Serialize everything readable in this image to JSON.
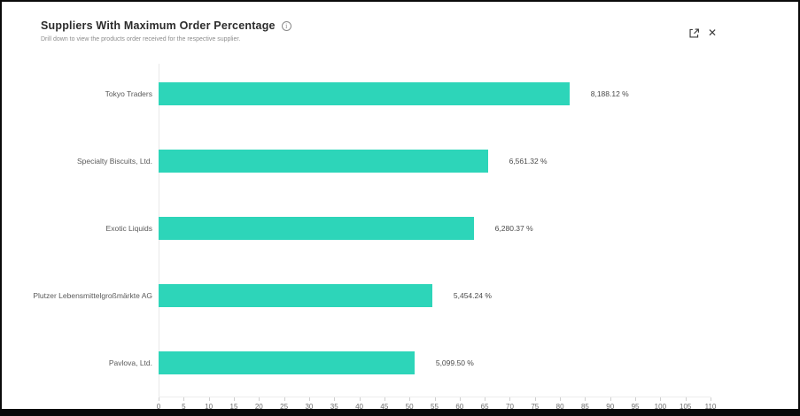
{
  "header": {
    "title": "Suppliers With Maximum Order Percentage",
    "info_icon_glyph": "i",
    "subtitle": "Drill down to view the products order received for the respective supplier.",
    "actions": {
      "export_icon": "export",
      "close_icon_glyph": "✕"
    }
  },
  "colors": {
    "bar": "#2dd5b9",
    "border": "#0a0a0a",
    "axis_line": "#e9e9e9",
    "tick_text": "#6b6b6b"
  },
  "chart_data": {
    "type": "bar",
    "orientation": "horizontal",
    "title": "Suppliers With Maximum Order Percentage",
    "categories": [
      "Tokyo Traders",
      "Specialty Biscuits, Ltd.",
      "Exotic Liquids",
      "Plutzer Lebensmittelgroßmärkte AG",
      "Pavlova, Ltd."
    ],
    "values": [
      8188.12,
      6561.32,
      6280.37,
      5454.24,
      5099.5
    ],
    "value_labels": [
      "8,188.12 %",
      "6,561.32 %",
      "6,280.37 %",
      "5,454.24 %",
      "5,099.50 %"
    ],
    "axis_values": [
      81.88,
      65.61,
      62.8,
      54.54,
      51.0
    ],
    "xlabel": "",
    "ylabel": "",
    "xlim": [
      0,
      110
    ],
    "xticks": [
      0,
      5,
      10,
      15,
      20,
      25,
      30,
      35,
      40,
      45,
      50,
      55,
      60,
      65,
      70,
      75,
      80,
      85,
      90,
      95,
      100,
      105,
      110
    ],
    "grid": false,
    "legend": "none",
    "bar_color": "#2dd5b9"
  }
}
